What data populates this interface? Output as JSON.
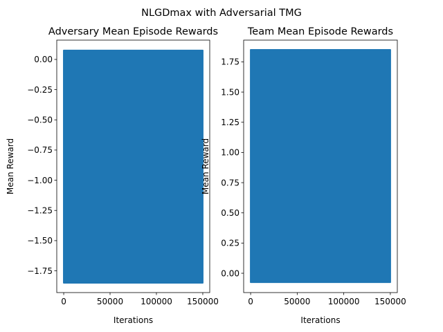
{
  "figure": {
    "suptitle": "NLGDmax with Adversarial TMG"
  },
  "chart_data": [
    {
      "type": "line",
      "title": "Adversary Mean Episode Rewards",
      "xlabel": "Iterations",
      "ylabel": "Mean Reward",
      "xlim": [
        -7500,
        157500
      ],
      "ylim": [
        -1.93,
        0.16
      ],
      "xticks": [
        0,
        50000,
        100000,
        150000
      ],
      "xtick_labels": [
        "0",
        "50000",
        "100000",
        "150000"
      ],
      "yticks": [
        0.0,
        -0.25,
        -0.5,
        -0.75,
        -1.0,
        -1.25,
        -1.5,
        -1.75
      ],
      "ytick_labels": [
        "0.00",
        "−0.25",
        "−0.50",
        "−0.75",
        "−1.00",
        "−1.25",
        "−1.50",
        "−1.75"
      ],
      "grid": false,
      "color": "#1f77b4",
      "series": [
        {
          "x_range": [
            0,
            150000
          ],
          "oscillation_min": -1.85,
          "oscillation_max": 0.075
        }
      ]
    },
    {
      "type": "line",
      "title": "Team Mean Episode Rewards",
      "xlabel": "Iterations",
      "ylabel": "Mean Reward",
      "xlim": [
        -7500,
        157500
      ],
      "ylim": [
        -0.16,
        1.93
      ],
      "xticks": [
        0,
        50000,
        100000,
        150000
      ],
      "xtick_labels": [
        "0",
        "50000",
        "100000",
        "150000"
      ],
      "yticks": [
        1.75,
        1.5,
        1.25,
        1.0,
        0.75,
        0.5,
        0.25,
        0.0
      ],
      "ytick_labels": [
        "1.75",
        "1.50",
        "1.25",
        "1.00",
        "0.75",
        "0.50",
        "0.25",
        "0.00"
      ],
      "grid": false,
      "color": "#1f77b4",
      "series": [
        {
          "x_range": [
            0,
            150000
          ],
          "oscillation_min": -0.075,
          "oscillation_max": 1.85
        }
      ]
    }
  ]
}
